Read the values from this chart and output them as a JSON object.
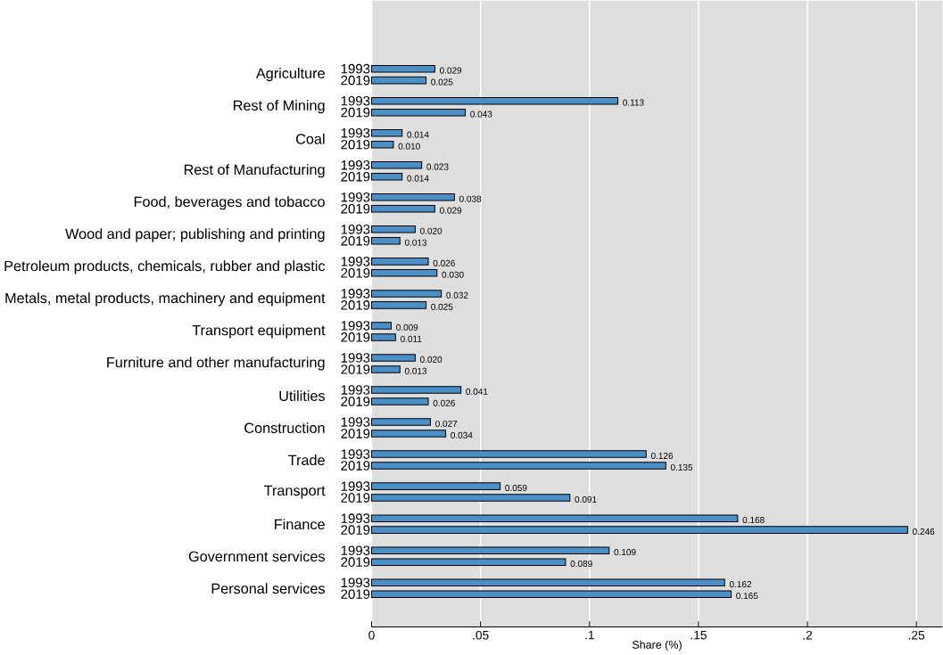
{
  "chart_data": {
    "type": "bar",
    "orientation": "horizontal",
    "xlabel": "Share (%)",
    "categories": [
      "Agriculture",
      "Rest of Mining",
      "Coal",
      "Rest of Manufacturing",
      "Food, beverages and tobacco",
      "Wood and paper; publishing and printing",
      "Petroleum products, chemicals, rubber and  plastic",
      "Metals, metal products, machinery and equipment",
      "Transport equipment",
      "Furniture and other manufacturing",
      "Utilities",
      "Construction",
      "Trade",
      "Transport",
      "Finance",
      "Government services",
      "Personal services"
    ],
    "series": [
      {
        "name": "1993",
        "color": "#4a8fc6",
        "values": [
          0.029,
          0.113,
          0.014,
          0.023,
          0.038,
          0.02,
          0.026,
          0.032,
          0.009,
          0.02,
          0.041,
          0.027,
          0.126,
          0.059,
          0.168,
          0.109,
          0.162
        ],
        "value_labels": [
          "0.029",
          "0.113",
          "0.014",
          "0.023",
          "0.038",
          "0.020",
          "0.026",
          "0.032",
          "0.009",
          "0.020",
          "0.041",
          "0.027",
          "0.126",
          "0.059",
          "0.168",
          "0.109",
          "0.162"
        ]
      },
      {
        "name": "2019",
        "color": "#4a8fc6",
        "values": [
          0.025,
          0.043,
          0.01,
          0.014,
          0.029,
          0.013,
          0.03,
          0.025,
          0.011,
          0.013,
          0.026,
          0.034,
          0.135,
          0.091,
          0.246,
          0.089,
          0.165
        ],
        "value_labels": [
          "0.025",
          "0.043",
          "0.010",
          "0.014",
          "0.029",
          "0.013",
          "0.030",
          "0.025",
          "0.011",
          "0.013",
          "0.026",
          "0.034",
          "0.135",
          "0.091",
          "0.246",
          "0.089",
          "0.165"
        ]
      }
    ],
    "xlim": [
      0,
      0.262
    ],
    "xticks": [
      0,
      {
        "value": 0.05,
        "label": ".05"
      },
      {
        "value": 0.1,
        "label": ".1"
      },
      {
        "value": 0.15,
        "label": ".15"
      },
      {
        "value": 0.2,
        "label": ".2"
      },
      {
        "value": 0.25,
        "label": ".25"
      }
    ],
    "grid": "x"
  }
}
